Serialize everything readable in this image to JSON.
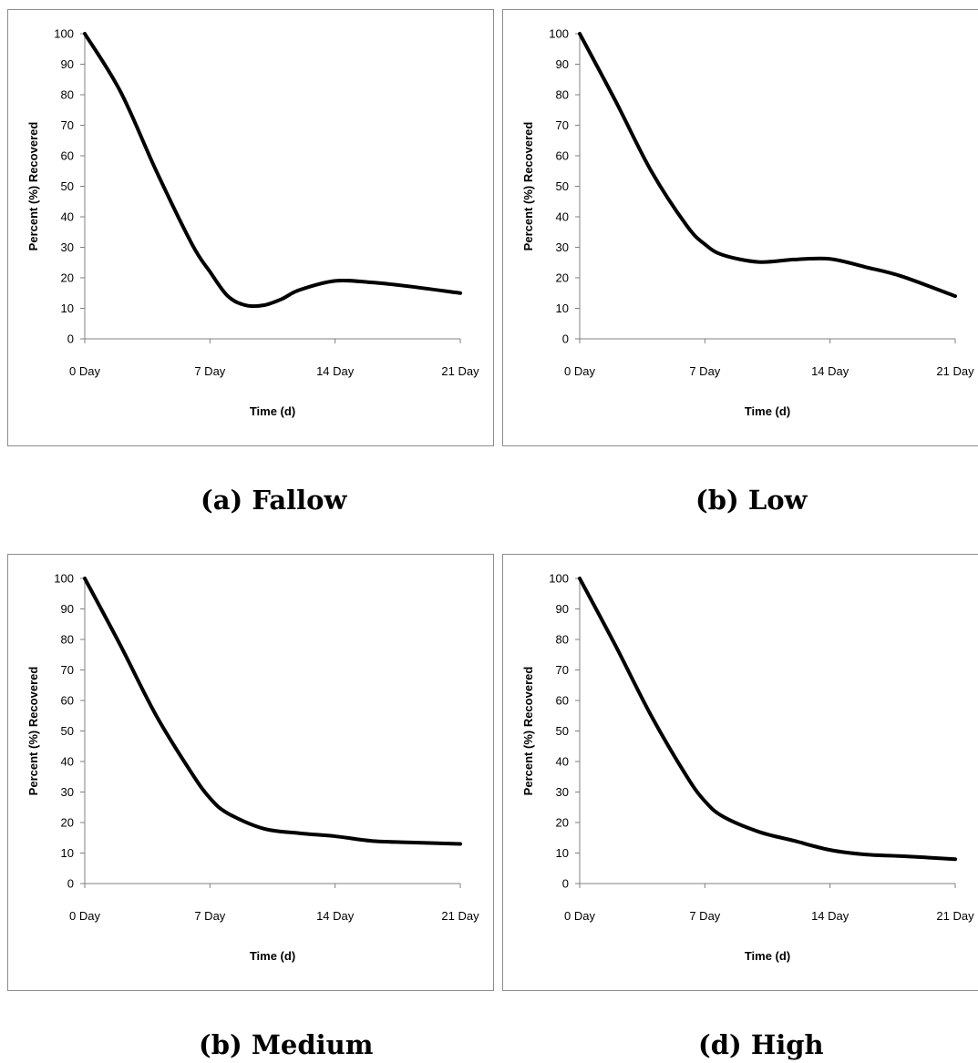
{
  "chart_data": [
    {
      "type": "line",
      "caption": "(a) Fallow",
      "categories": [
        "0 Day",
        "7 Day",
        "14 Day",
        "21 Day"
      ],
      "x": [
        0,
        2,
        4,
        6,
        7,
        8,
        9,
        10,
        11,
        12,
        14,
        16,
        18,
        21
      ],
      "series": [
        {
          "values": [
            100,
            81,
            55,
            31,
            22,
            14,
            11,
            11,
            13,
            16,
            19,
            18.5,
            17.3,
            15
          ]
        }
      ],
      "xlabel": "Time (d)",
      "ylabel": "Percent (%) Recovered",
      "xlim": [
        0,
        21
      ],
      "ylim": [
        0,
        100
      ],
      "yticks": [
        0,
        10,
        20,
        30,
        40,
        50,
        60,
        70,
        80,
        90,
        100
      ],
      "grid": false,
      "color": "#000000"
    },
    {
      "type": "line",
      "caption": "(b) Low",
      "categories": [
        "0 Day",
        "7 Day",
        "14 Day",
        "21 Day"
      ],
      "x": [
        0,
        2,
        4,
        6,
        7,
        8,
        10,
        12,
        14,
        16,
        18,
        21
      ],
      "series": [
        {
          "values": [
            100,
            78,
            55,
            37,
            31,
            27.5,
            25.2,
            26,
            26.2,
            23.5,
            20.5,
            14
          ]
        }
      ],
      "xlabel": "Time (d)",
      "ylabel": "Percent (%) Recovered",
      "xlim": [
        0,
        21
      ],
      "ylim": [
        0,
        100
      ],
      "yticks": [
        0,
        10,
        20,
        30,
        40,
        50,
        60,
        70,
        80,
        90,
        100
      ],
      "grid": false,
      "color": "#000000"
    },
    {
      "type": "line",
      "caption": "(b) Medium",
      "categories": [
        "0 Day",
        "7 Day",
        "14 Day",
        "21 Day"
      ],
      "x": [
        0,
        2,
        4,
        6,
        7,
        8,
        10,
        12,
        14,
        16,
        18,
        21
      ],
      "series": [
        {
          "values": [
            100,
            78,
            55,
            36,
            28,
            23,
            18,
            16.5,
            15.5,
            14,
            13.5,
            13
          ]
        }
      ],
      "xlabel": "Time (d)",
      "ylabel": "Percent (%) Recovered",
      "xlim": [
        0,
        21
      ],
      "ylim": [
        0,
        100
      ],
      "yticks": [
        0,
        10,
        20,
        30,
        40,
        50,
        60,
        70,
        80,
        90,
        100
      ],
      "grid": false,
      "color": "#000000"
    },
    {
      "type": "line",
      "caption": "(d) High",
      "categories": [
        "0 Day",
        "7 Day",
        "14 Day",
        "21 Day"
      ],
      "x": [
        0,
        2,
        4,
        6,
        7,
        8,
        10,
        12,
        14,
        16,
        18,
        21
      ],
      "series": [
        {
          "values": [
            100,
            78,
            55,
            35,
            27,
            22,
            17,
            14,
            11,
            9.5,
            9,
            8
          ]
        }
      ],
      "xlabel": "Time (d)",
      "ylabel": "Percent (%) Recovered",
      "xlim": [
        0,
        21
      ],
      "ylim": [
        0,
        100
      ],
      "yticks": [
        0,
        10,
        20,
        30,
        40,
        50,
        60,
        70,
        80,
        90,
        100
      ],
      "grid": false,
      "color": "#000000"
    }
  ]
}
